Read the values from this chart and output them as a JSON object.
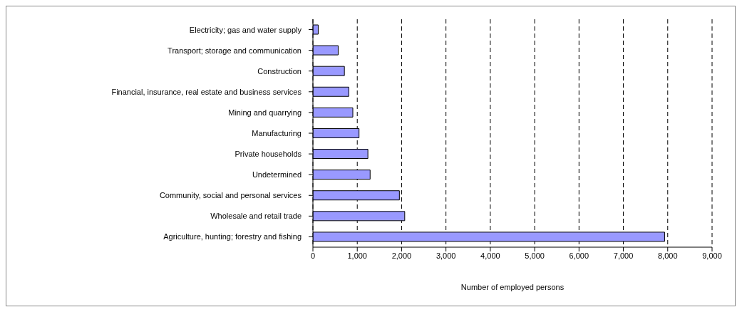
{
  "chart_data": {
    "type": "bar",
    "orientation": "horizontal",
    "xlabel": "Number of employed persons",
    "categories": [
      "Electricity; gas and water supply",
      "Transport; storage and communication",
      "Construction",
      "Financial, insurance, real estate and business services",
      "Mining and quarrying",
      "Manufacturing",
      "Private households",
      "Undetermined",
      "Community, social and personal services",
      "Wholesale and retail trade",
      "Agriculture, hunting; forestry and fishing"
    ],
    "values": [
      120,
      570,
      710,
      810,
      900,
      1040,
      1240,
      1290,
      1950,
      2070,
      7930
    ],
    "color": "#9999ff",
    "xlim": [
      0,
      9000
    ],
    "xticks": [
      {
        "value": 0,
        "label": "0"
      },
      {
        "value": 1000,
        "label": "1,000"
      },
      {
        "value": 2000,
        "label": "2,000"
      },
      {
        "value": 3000,
        "label": "3,000"
      },
      {
        "value": 4000,
        "label": "4,000"
      },
      {
        "value": 5000,
        "label": "5,000"
      },
      {
        "value": 6000,
        "label": "6,000"
      },
      {
        "value": 7000,
        "label": "7,000"
      },
      {
        "value": 8000,
        "label": "8,000"
      },
      {
        "value": 9000,
        "label": "9,000"
      }
    ],
    "grid": "x",
    "legend": false
  }
}
